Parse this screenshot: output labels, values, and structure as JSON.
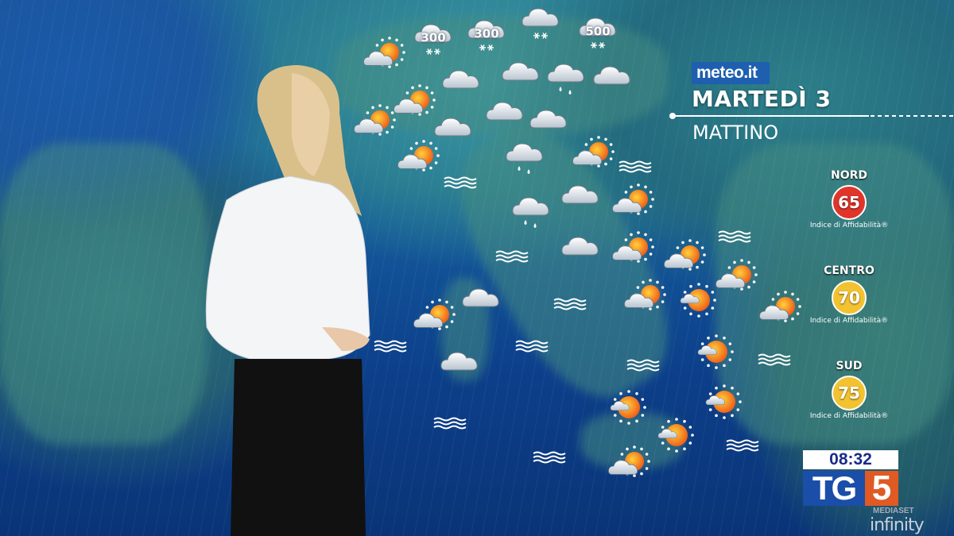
{
  "broadcast": {
    "source_logo": "meteo.it",
    "day": "MARTEDÌ 3",
    "period": "MATTINO",
    "clock": "08:32",
    "channel_logo": {
      "tg": "TG",
      "number": "5",
      "sub": "MEDIASET",
      "brand": "infinity"
    }
  },
  "reliability": [
    {
      "region": "NORD",
      "value": "65",
      "label": "Indice di Affidabilità®",
      "color": "#e0352b"
    },
    {
      "region": "CENTRO",
      "value": "70",
      "label": "Indice di Affidabilità®",
      "color": "#f2c230"
    },
    {
      "region": "SUD",
      "value": "75",
      "label": "Indice di Affidabilità®",
      "color": "#f2c230"
    }
  ],
  "map": {
    "snow_levels": [
      "300",
      "300",
      "500"
    ],
    "icon_types": [
      "snow-cloud",
      "sun-cloud",
      "cloud",
      "rain-cloud",
      "sea-waves"
    ],
    "colors": {
      "sea": "#0c3f8a",
      "sun": "#f07a1a"
    }
  }
}
